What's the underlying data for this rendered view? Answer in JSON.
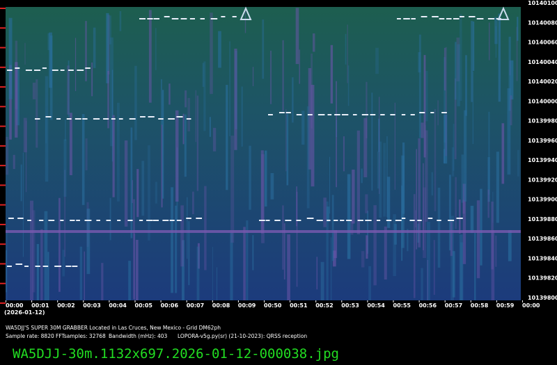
{
  "y_axis": {
    "labels": [
      "10140100",
      "10140080",
      "10140060",
      "10140040",
      "10140020",
      "10140000",
      "10139980",
      "10139960",
      "10139940",
      "10139920",
      "10139900",
      "10139880",
      "10139860",
      "10139840",
      "10139820",
      "10139800"
    ]
  },
  "x_axis": {
    "labels": [
      "00:00",
      "00:01",
      "00:02",
      "00:03",
      "00:04",
      "00:05",
      "00:06",
      "00:07",
      "00:08",
      "00:09",
      "00:50",
      "00:51",
      "00:52",
      "00:53",
      "00:54",
      "00:55",
      "00:56",
      "00:57",
      "00:58",
      "00:59",
      "00:00"
    ],
    "date": "(2026-01-12)"
  },
  "footer": {
    "station": "WA5DJJ'S SUPER 30M GRABBER Located in Las Cruces, New Mexico - Grid DM62ph",
    "sample_rate": "Sample rate: 8820",
    "fft_samples": "FFTsamples: 32768",
    "bandwidth": "Bandwidth (mHz): 403",
    "software": "LOPORA-v5g.py(sr) (21-10-2023): QRSS reception",
    "filename": "WA5DJJ-30m.1132x697.2026-01-12-000038.jpg"
  }
}
